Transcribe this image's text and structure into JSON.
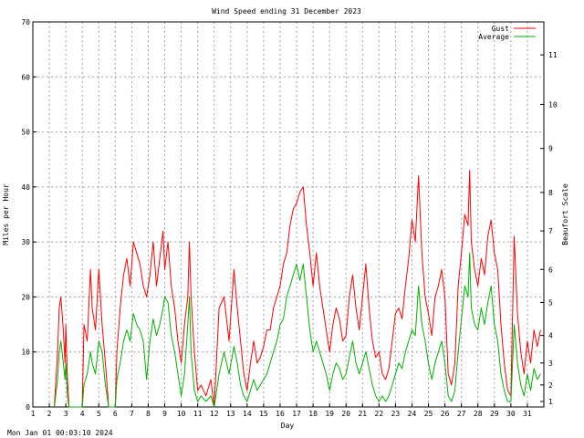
{
  "chart_data": {
    "type": "line",
    "title": "Wind Speed ending 31 December 2023",
    "xlabel": "Day",
    "ylabel": "Miles per Hour",
    "y2label": "Beaufort Scale",
    "timestamp": "Mon Jan 01 00:03:10 2024",
    "xlim": [
      1,
      32
    ],
    "ylim": [
      0,
      70
    ],
    "grid": true,
    "legend_position": "top-right",
    "x_ticks": [
      "1",
      "2",
      "3",
      "4",
      "5",
      "6",
      "7",
      "8",
      "9",
      "10",
      "11",
      "12",
      "13",
      "14",
      "15",
      "16",
      "17",
      "18",
      "19",
      "20",
      "21",
      "22",
      "23",
      "24",
      "25",
      "26",
      "27",
      "28",
      "29",
      "30",
      "31"
    ],
    "y_ticks": [
      "0",
      "10",
      "20",
      "30",
      "40",
      "50",
      "60",
      "70"
    ],
    "beaufort_ticks": [
      {
        "label": "1",
        "mph": 1
      },
      {
        "label": "2",
        "mph": 4
      },
      {
        "label": "3",
        "mph": 8
      },
      {
        "label": "4",
        "mph": 13
      },
      {
        "label": "5",
        "mph": 19
      },
      {
        "label": "6",
        "mph": 25
      },
      {
        "label": "7",
        "mph": 32
      },
      {
        "label": "8",
        "mph": 39
      },
      {
        "label": "9",
        "mph": 47
      },
      {
        "label": "10",
        "mph": 55
      },
      {
        "label": "11",
        "mph": 64
      }
    ],
    "series": [
      {
        "name": "Gust",
        "color": "#ff0000",
        "points": [
          [
            2.3,
            0
          ],
          [
            2.5,
            10
          ],
          [
            2.6,
            18
          ],
          [
            2.7,
            20
          ],
          [
            2.85,
            14
          ],
          [
            2.95,
            8
          ],
          [
            3.0,
            15
          ],
          [
            3.1,
            5
          ],
          [
            3.2,
            0
          ],
          [
            4.0,
            0
          ],
          [
            4.1,
            15
          ],
          [
            4.3,
            12
          ],
          [
            4.5,
            25
          ],
          [
            4.6,
            18
          ],
          [
            4.8,
            14
          ],
          [
            5.0,
            25
          ],
          [
            5.2,
            15
          ],
          [
            5.4,
            8
          ],
          [
            5.6,
            0
          ],
          [
            6.0,
            0
          ],
          [
            6.1,
            10
          ],
          [
            6.3,
            18
          ],
          [
            6.5,
            24
          ],
          [
            6.7,
            27
          ],
          [
            6.9,
            22
          ],
          [
            7.1,
            30
          ],
          [
            7.3,
            28
          ],
          [
            7.5,
            26
          ],
          [
            7.7,
            22
          ],
          [
            7.9,
            20
          ],
          [
            8.1,
            24
          ],
          [
            8.3,
            30
          ],
          [
            8.5,
            22
          ],
          [
            8.7,
            27
          ],
          [
            8.9,
            32
          ],
          [
            9.0,
            25
          ],
          [
            9.2,
            30
          ],
          [
            9.4,
            22
          ],
          [
            9.6,
            18
          ],
          [
            9.8,
            12
          ],
          [
            10.0,
            8
          ],
          [
            10.2,
            15
          ],
          [
            10.4,
            20
          ],
          [
            10.5,
            30
          ],
          [
            10.6,
            20
          ],
          [
            10.8,
            10
          ],
          [
            11.0,
            3
          ],
          [
            11.2,
            4
          ],
          [
            11.5,
            2
          ],
          [
            11.8,
            5
          ],
          [
            12.0,
            0
          ],
          [
            12.3,
            18
          ],
          [
            12.6,
            20
          ],
          [
            12.9,
            12
          ],
          [
            13.2,
            25
          ],
          [
            13.4,
            18
          ],
          [
            13.6,
            12
          ],
          [
            13.8,
            6
          ],
          [
            14.0,
            3
          ],
          [
            14.2,
            8
          ],
          [
            14.4,
            12
          ],
          [
            14.6,
            8
          ],
          [
            14.8,
            9
          ],
          [
            15.0,
            11
          ],
          [
            15.2,
            14
          ],
          [
            15.4,
            14
          ],
          [
            15.6,
            18
          ],
          [
            15.8,
            20
          ],
          [
            16.0,
            22
          ],
          [
            16.2,
            26
          ],
          [
            16.4,
            28
          ],
          [
            16.6,
            33
          ],
          [
            16.8,
            36
          ],
          [
            17.0,
            37
          ],
          [
            17.2,
            39
          ],
          [
            17.4,
            40
          ],
          [
            17.6,
            33
          ],
          [
            17.8,
            28
          ],
          [
            18.0,
            22
          ],
          [
            18.2,
            28
          ],
          [
            18.4,
            22
          ],
          [
            18.6,
            18
          ],
          [
            18.8,
            14
          ],
          [
            19.0,
            10
          ],
          [
            19.2,
            15
          ],
          [
            19.4,
            18
          ],
          [
            19.6,
            16
          ],
          [
            19.8,
            12
          ],
          [
            20.0,
            13
          ],
          [
            20.2,
            20
          ],
          [
            20.4,
            24
          ],
          [
            20.6,
            18
          ],
          [
            20.8,
            14
          ],
          [
            21.0,
            20
          ],
          [
            21.2,
            26
          ],
          [
            21.4,
            18
          ],
          [
            21.6,
            12
          ],
          [
            21.8,
            9
          ],
          [
            22.0,
            10
          ],
          [
            22.2,
            6
          ],
          [
            22.4,
            5
          ],
          [
            22.6,
            7
          ],
          [
            22.8,
            12
          ],
          [
            23.0,
            17
          ],
          [
            23.2,
            18
          ],
          [
            23.4,
            16
          ],
          [
            23.6,
            22
          ],
          [
            23.8,
            27
          ],
          [
            24.0,
            34
          ],
          [
            24.2,
            30
          ],
          [
            24.4,
            42
          ],
          [
            24.6,
            28
          ],
          [
            24.8,
            20
          ],
          [
            25.0,
            17
          ],
          [
            25.2,
            13
          ],
          [
            25.4,
            20
          ],
          [
            25.6,
            22
          ],
          [
            25.8,
            25
          ],
          [
            26.0,
            20
          ],
          [
            26.2,
            6
          ],
          [
            26.4,
            4
          ],
          [
            26.6,
            8
          ],
          [
            26.8,
            22
          ],
          [
            27.0,
            28
          ],
          [
            27.2,
            35
          ],
          [
            27.4,
            33
          ],
          [
            27.5,
            43
          ],
          [
            27.6,
            30
          ],
          [
            27.8,
            25
          ],
          [
            28.0,
            22
          ],
          [
            28.2,
            27
          ],
          [
            28.4,
            24
          ],
          [
            28.6,
            31
          ],
          [
            28.8,
            34
          ],
          [
            29.0,
            28
          ],
          [
            29.2,
            25
          ],
          [
            29.4,
            15
          ],
          [
            29.6,
            8
          ],
          [
            29.8,
            3
          ],
          [
            30.0,
            2
          ],
          [
            30.2,
            31
          ],
          [
            30.4,
            17
          ],
          [
            30.6,
            10
          ],
          [
            30.8,
            6
          ],
          [
            31.0,
            12
          ],
          [
            31.2,
            8
          ],
          [
            31.4,
            14
          ],
          [
            31.6,
            11
          ],
          [
            31.8,
            14
          ]
        ]
      },
      {
        "name": "Average",
        "color": "#00b000",
        "points": [
          [
            2.3,
            0
          ],
          [
            2.5,
            5
          ],
          [
            2.6,
            10
          ],
          [
            2.7,
            12
          ],
          [
            2.85,
            8
          ],
          [
            2.95,
            5
          ],
          [
            3.0,
            8
          ],
          [
            3.1,
            2
          ],
          [
            3.2,
            0
          ],
          [
            4.0,
            0
          ],
          [
            4.1,
            4
          ],
          [
            4.3,
            6
          ],
          [
            4.5,
            10
          ],
          [
            4.6,
            8
          ],
          [
            4.8,
            6
          ],
          [
            5.0,
            12
          ],
          [
            5.2,
            10
          ],
          [
            5.4,
            4
          ],
          [
            5.6,
            0
          ],
          [
            6.0,
            0
          ],
          [
            6.1,
            5
          ],
          [
            6.3,
            8
          ],
          [
            6.5,
            12
          ],
          [
            6.7,
            14
          ],
          [
            6.9,
            12
          ],
          [
            7.1,
            17
          ],
          [
            7.3,
            15
          ],
          [
            7.5,
            14
          ],
          [
            7.7,
            12
          ],
          [
            7.9,
            5
          ],
          [
            8.1,
            12
          ],
          [
            8.3,
            16
          ],
          [
            8.5,
            13
          ],
          [
            8.7,
            15
          ],
          [
            8.9,
            18
          ],
          [
            9.0,
            20
          ],
          [
            9.2,
            19
          ],
          [
            9.4,
            13
          ],
          [
            9.6,
            10
          ],
          [
            9.8,
            6
          ],
          [
            10.0,
            2
          ],
          [
            10.2,
            6
          ],
          [
            10.4,
            15
          ],
          [
            10.5,
            20
          ],
          [
            10.6,
            10
          ],
          [
            10.8,
            3
          ],
          [
            11.0,
            1
          ],
          [
            11.2,
            2
          ],
          [
            11.5,
            1
          ],
          [
            11.8,
            2
          ],
          [
            12.0,
            0
          ],
          [
            12.3,
            6
          ],
          [
            12.6,
            10
          ],
          [
            12.9,
            6
          ],
          [
            13.2,
            11
          ],
          [
            13.4,
            8
          ],
          [
            13.6,
            4
          ],
          [
            13.8,
            2
          ],
          [
            14.0,
            1
          ],
          [
            14.2,
            3
          ],
          [
            14.4,
            5
          ],
          [
            14.6,
            3
          ],
          [
            14.8,
            4
          ],
          [
            15.0,
            5
          ],
          [
            15.2,
            6
          ],
          [
            15.4,
            8
          ],
          [
            15.6,
            10
          ],
          [
            15.8,
            12
          ],
          [
            16.0,
            15
          ],
          [
            16.2,
            16
          ],
          [
            16.4,
            20
          ],
          [
            16.6,
            22
          ],
          [
            16.8,
            24
          ],
          [
            17.0,
            26
          ],
          [
            17.2,
            23
          ],
          [
            17.4,
            26
          ],
          [
            17.6,
            20
          ],
          [
            17.8,
            14
          ],
          [
            18.0,
            10
          ],
          [
            18.2,
            12
          ],
          [
            18.4,
            10
          ],
          [
            18.6,
            8
          ],
          [
            18.8,
            6
          ],
          [
            19.0,
            3
          ],
          [
            19.2,
            6
          ],
          [
            19.4,
            8
          ],
          [
            19.6,
            7
          ],
          [
            19.8,
            5
          ],
          [
            20.0,
            6
          ],
          [
            20.2,
            9
          ],
          [
            20.4,
            12
          ],
          [
            20.6,
            8
          ],
          [
            20.8,
            6
          ],
          [
            21.0,
            8
          ],
          [
            21.2,
            10
          ],
          [
            21.4,
            7
          ],
          [
            21.6,
            4
          ],
          [
            21.8,
            2
          ],
          [
            22.0,
            1
          ],
          [
            22.2,
            2
          ],
          [
            22.4,
            1
          ],
          [
            22.6,
            2
          ],
          [
            22.8,
            4
          ],
          [
            23.0,
            6
          ],
          [
            23.2,
            8
          ],
          [
            23.4,
            7
          ],
          [
            23.6,
            10
          ],
          [
            23.8,
            12
          ],
          [
            24.0,
            14
          ],
          [
            24.2,
            13
          ],
          [
            24.4,
            22
          ],
          [
            24.6,
            15
          ],
          [
            24.8,
            12
          ],
          [
            25.0,
            8
          ],
          [
            25.2,
            5
          ],
          [
            25.4,
            8
          ],
          [
            25.6,
            10
          ],
          [
            25.8,
            12
          ],
          [
            26.0,
            8
          ],
          [
            26.2,
            2
          ],
          [
            26.4,
            1
          ],
          [
            26.6,
            3
          ],
          [
            26.8,
            10
          ],
          [
            27.0,
            16
          ],
          [
            27.2,
            22
          ],
          [
            27.4,
            20
          ],
          [
            27.5,
            28
          ],
          [
            27.6,
            18
          ],
          [
            27.8,
            15
          ],
          [
            28.0,
            14
          ],
          [
            28.2,
            18
          ],
          [
            28.4,
            15
          ],
          [
            28.6,
            19
          ],
          [
            28.8,
            22
          ],
          [
            29.0,
            15
          ],
          [
            29.2,
            12
          ],
          [
            29.4,
            6
          ],
          [
            29.6,
            3
          ],
          [
            29.8,
            1
          ],
          [
            30.0,
            1
          ],
          [
            30.2,
            15
          ],
          [
            30.4,
            8
          ],
          [
            30.6,
            4
          ],
          [
            30.8,
            2
          ],
          [
            31.0,
            6
          ],
          [
            31.2,
            3
          ],
          [
            31.4,
            7
          ],
          [
            31.6,
            5
          ],
          [
            31.8,
            6
          ]
        ]
      }
    ]
  }
}
